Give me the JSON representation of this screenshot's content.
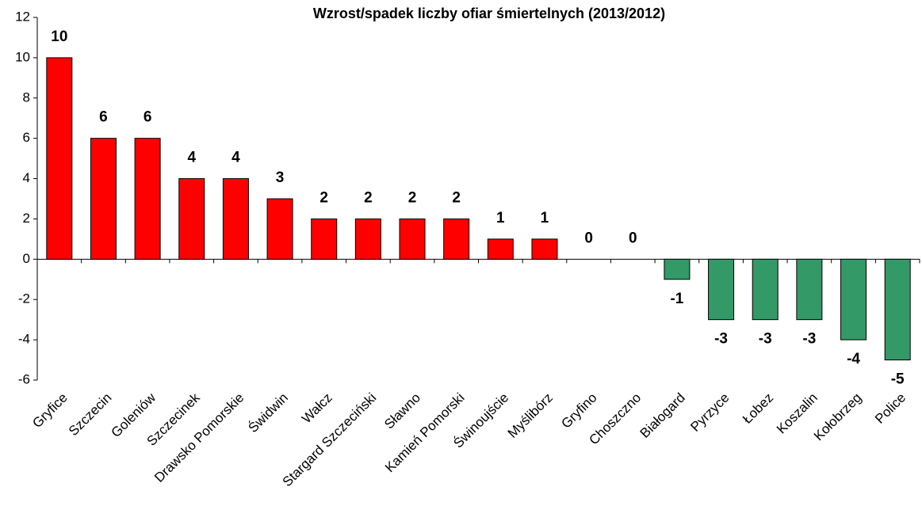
{
  "chart_data": {
    "type": "bar",
    "title": "Wzrost/spadek liczby ofiar śmiertelnych (2013/2012)",
    "categories": [
      "Gryfice",
      "Szczecin",
      "Goleniów",
      "Szczecinek",
      "Drawsko Pomorskie",
      "Świdwin",
      "Wałcz",
      "Stargard Szczeciński",
      "Sławno",
      "Kamień Pomorski",
      "Świnoujście",
      "Myślibórz",
      "Gryfino",
      "Choszczno",
      "Białogard",
      "Pyrzyce",
      "Łobez",
      "Koszalin",
      "Kołobrzeg",
      "Police"
    ],
    "values": [
      10,
      6,
      6,
      4,
      4,
      3,
      2,
      2,
      2,
      2,
      1,
      1,
      0,
      0,
      -1,
      -3,
      -3,
      -3,
      -4,
      -5
    ],
    "color": "#ff0000",
    "negative_color": "#339966",
    "ylim": [
      -6,
      12
    ],
    "yticks": [
      -6,
      -4,
      -2,
      0,
      2,
      4,
      6,
      8,
      10,
      12
    ],
    "grid": false
  }
}
